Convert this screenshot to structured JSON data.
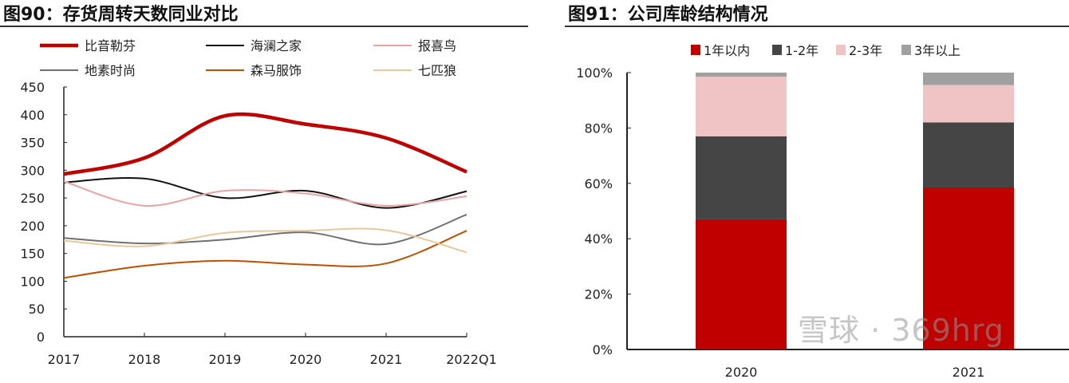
{
  "chart_data": [
    {
      "type": "line",
      "title": "图90：存货周转天数同业对比",
      "categories": [
        "2017",
        "2018",
        "2019",
        "2020",
        "2021",
        "2022Q1"
      ],
      "ylim": [
        0,
        450
      ],
      "yticks": [
        0,
        50,
        100,
        150,
        200,
        250,
        300,
        350,
        400,
        450
      ],
      "grid": false,
      "legend": "top",
      "series": [
        {
          "name": "比音勒芬",
          "color": "#c00000",
          "values": [
            293,
            322,
            398,
            383,
            358,
            297
          ]
        },
        {
          "name": "海澜之家",
          "color": "#111111",
          "values": [
            278,
            285,
            250,
            263,
            232,
            262
          ]
        },
        {
          "name": "报喜鸟",
          "color": "#e8a3a3",
          "values": [
            280,
            236,
            263,
            258,
            236,
            253
          ]
        },
        {
          "name": "地素时尚",
          "color": "#707070",
          "values": [
            178,
            168,
            175,
            188,
            167,
            220
          ]
        },
        {
          "name": "森马服饰",
          "color": "#c05000",
          "values": [
            106,
            128,
            137,
            130,
            132,
            191
          ]
        },
        {
          "name": "七匹狼",
          "color": "#e8c89a",
          "values": [
            173,
            163,
            187,
            191,
            192,
            152
          ]
        }
      ]
    },
    {
      "type": "bar",
      "stacked": true,
      "title": "图91：公司库龄结构情况",
      "categories": [
        "2020",
        "2021"
      ],
      "ylim": [
        0,
        100
      ],
      "yticks": [
        "0%",
        "20%",
        "40%",
        "60%",
        "80%",
        "100%"
      ],
      "legend": "top",
      "series": [
        {
          "name": "1年以内",
          "color": "#c00000",
          "values": [
            47,
            58.5
          ]
        },
        {
          "name": "1-2年",
          "color": "#454545",
          "values": [
            30,
            23.5
          ]
        },
        {
          "name": "2-3年",
          "color": "#f0c4c4",
          "values": [
            21.5,
            13.5
          ]
        },
        {
          "name": "3年以上",
          "color": "#a0a0a0",
          "values": [
            1.5,
            4.5
          ]
        }
      ]
    }
  ],
  "watermark": "雪球 · 369hrg"
}
